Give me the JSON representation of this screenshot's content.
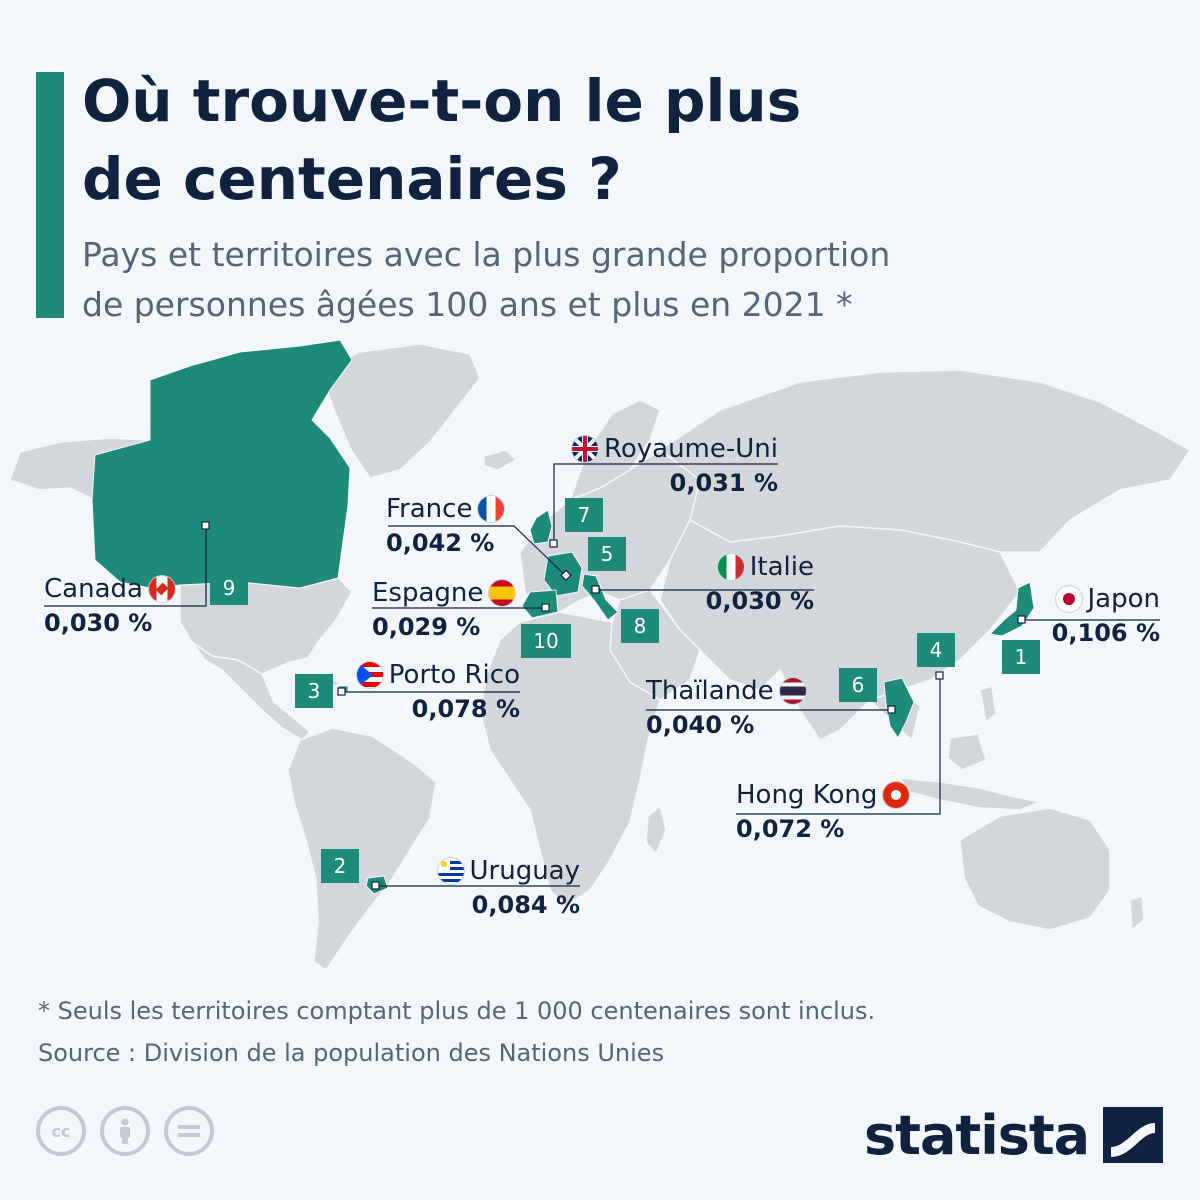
{
  "title_line1": "Où trouve-t-on le plus",
  "title_line2": "de centenaires ?",
  "subtitle_line1": "Pays et territoires avec la plus grande proportion",
  "subtitle_line2": "de personnes âgées 100 ans et plus en 2021 *",
  "colors": {
    "highlight": "#1d8a7a",
    "land": "#d3d6da",
    "text": "#0f2340",
    "subtext": "#55657a"
  },
  "countries": [
    {
      "rank": "1",
      "name": "Japon",
      "value": "0,106 %",
      "flag": "japan-flag-icon"
    },
    {
      "rank": "2",
      "name": "Uruguay",
      "value": "0,084 %",
      "flag": "uruguay-flag-icon"
    },
    {
      "rank": "3",
      "name": "Porto Rico",
      "value": "0,078 %",
      "flag": "puerto-rico-flag-icon"
    },
    {
      "rank": "4",
      "name": "Hong Kong",
      "value": "0,072 %",
      "flag": "hong-kong-flag-icon"
    },
    {
      "rank": "5",
      "name": "France",
      "value": "0,042 %",
      "flag": "france-flag-icon"
    },
    {
      "rank": "6",
      "name": "Thaïlande",
      "value": "0,040 %",
      "flag": "thailand-flag-icon"
    },
    {
      "rank": "7",
      "name": "Royaume-Uni",
      "value": "0,031 %",
      "flag": "uk-flag-icon"
    },
    {
      "rank": "8",
      "name": "Italie",
      "value": "0,030 %",
      "flag": "italy-flag-icon"
    },
    {
      "rank": "9",
      "name": "Canada",
      "value": "0,030 %",
      "flag": "canada-flag-icon"
    },
    {
      "rank": "10",
      "name": "Espagne",
      "value": "0,029 %",
      "flag": "spain-flag-icon"
    }
  ],
  "footnote_line1": "* Seuls les territoires comptant plus de 1 000 centenaires sont inclus.",
  "footnote_line2": "Source : Division de la population des Nations Unies",
  "cc_icons": [
    "cc",
    "by",
    "nd"
  ],
  "brand": "statista"
}
